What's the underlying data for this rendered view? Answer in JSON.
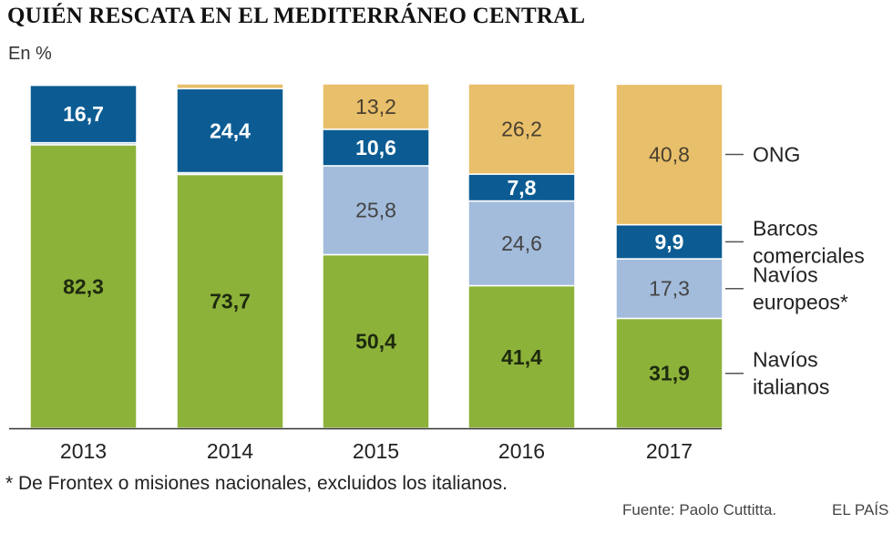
{
  "title": "QUIÉN RESCATA EN EL MEDITERRÁNEO CENTRAL",
  "subtitle": "En %",
  "footnote": "* De Frontex o misiones nacionales, excluidos los italianos.",
  "source": "Fuente: Paolo Cuttitta.",
  "brand": "EL PAÍS",
  "chart_data": {
    "type": "bar",
    "stacked": true,
    "title": "QUIÉN RESCATA EN EL MEDITERRÁNEO CENTRAL",
    "ylabel": "En %",
    "ylim": [
      0,
      100
    ],
    "grid": false,
    "legend_position": "right",
    "categories": [
      "2013",
      "2014",
      "2015",
      "2016",
      "2017"
    ],
    "series": [
      {
        "name": "Navíos italianos",
        "legend_lines": [
          "Navíos",
          "italianos"
        ],
        "color": "#8db23a",
        "label_color": "#1e2a0e",
        "values": [
          82.3,
          73.7,
          50.4,
          41.4,
          31.9
        ],
        "labels": [
          "82,3",
          "73,7",
          "50,4",
          "41,4",
          "31,9"
        ]
      },
      {
        "name": "Navíos europeos*",
        "legend_lines": [
          "Navíos",
          "europeos*"
        ],
        "color": "#a3bcdc",
        "label_color": "#444444",
        "values": [
          0.6,
          0.5,
          25.8,
          24.6,
          17.3
        ],
        "labels": [
          "",
          "",
          "25,8",
          "24,6",
          "17,3"
        ]
      },
      {
        "name": "Barcos comerciales",
        "legend_lines": [
          "Barcos",
          "comerciales"
        ],
        "color": "#0c5c93",
        "label_color": "#ffffff",
        "values": [
          16.7,
          24.4,
          10.6,
          7.8,
          9.9
        ],
        "labels": [
          "16,7",
          "24,4",
          "10,6",
          "7,8",
          "9,9"
        ]
      },
      {
        "name": "ONG",
        "legend_lines": [
          "ONG"
        ],
        "color": "#e8bf6a",
        "label_color": "#4a4030",
        "values": [
          0.4,
          1.4,
          13.2,
          26.2,
          40.8
        ],
        "labels": [
          "",
          "",
          "13,2",
          "26,2",
          "40,8"
        ]
      }
    ]
  }
}
